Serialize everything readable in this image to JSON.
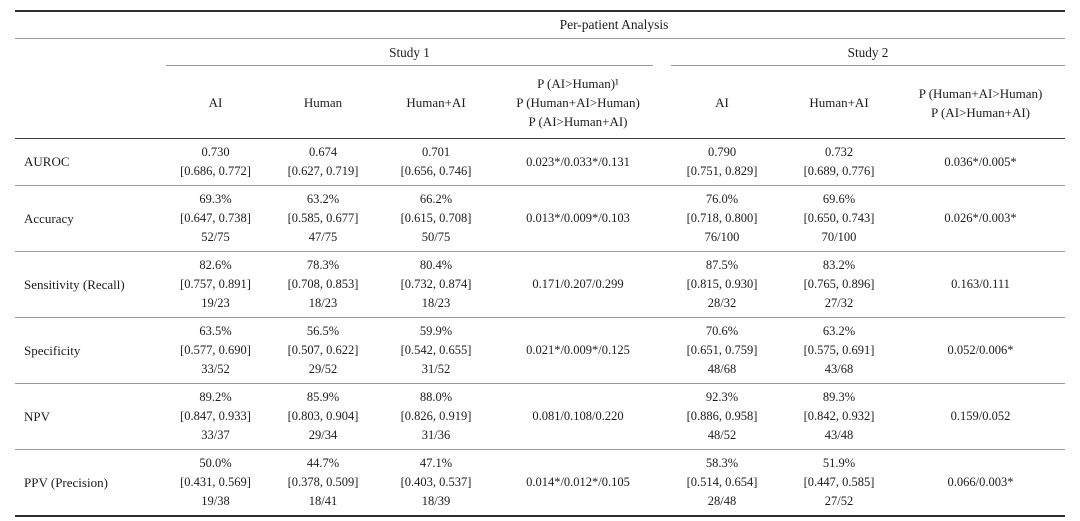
{
  "page": {
    "background": "#ffffff",
    "text_color": "#1c1c1c",
    "rule_dark": "#2e2e2e",
    "rule_light": "#9b9b9b"
  },
  "table": {
    "title": "Per-patient Analysis",
    "groups": [
      {
        "label": "Study 1"
      },
      {
        "label": "Study 2"
      }
    ],
    "columns": {
      "study1": [
        {
          "lines": [
            "AI"
          ]
        },
        {
          "lines": [
            "Human"
          ]
        },
        {
          "lines": [
            "Human+AI"
          ]
        },
        {
          "lines": [
            "P (AI>Human)¹",
            "P (Human+AI>Human)",
            "P (AI>Human+AI)"
          ]
        }
      ],
      "study2": [
        {
          "lines": [
            "AI"
          ]
        },
        {
          "lines": [
            "Human+AI"
          ]
        },
        {
          "lines": [
            "P (Human+AI>Human)",
            "P (AI>Human+AI)"
          ]
        }
      ]
    },
    "rows": [
      {
        "label": "AUROC",
        "cells": [
          [
            "0.730",
            "[0.686, 0.772]"
          ],
          [
            "0.674",
            "[0.627, 0.719]"
          ],
          [
            "0.701",
            "[0.656, 0.746]"
          ],
          [
            "0.023*/0.033*/0.131"
          ],
          [
            "0.790",
            "[0.751, 0.829]"
          ],
          [
            "0.732",
            "[0.689, 0.776]"
          ],
          [
            "0.036*/0.005*"
          ]
        ]
      },
      {
        "label": "Accuracy",
        "cells": [
          [
            "69.3%",
            "[0.647, 0.738]",
            "52/75"
          ],
          [
            "63.2%",
            "[0.585, 0.677]",
            "47/75"
          ],
          [
            "66.2%",
            "[0.615, 0.708]",
            "50/75"
          ],
          [
            "0.013*/0.009*/0.103"
          ],
          [
            "76.0%",
            "[0.718, 0.800]",
            "76/100"
          ],
          [
            "69.6%",
            "[0.650, 0.743]",
            "70/100"
          ],
          [
            "0.026*/0.003*"
          ]
        ]
      },
      {
        "label": "Sensitivity (Recall)",
        "cells": [
          [
            "82.6%",
            "[0.757, 0.891]",
            "19/23"
          ],
          [
            "78.3%",
            "[0.708, 0.853]",
            "18/23"
          ],
          [
            "80.4%",
            "[0.732, 0.874]",
            "18/23"
          ],
          [
            "0.171/0.207/0.299"
          ],
          [
            "87.5%",
            "[0.815, 0.930]",
            "28/32"
          ],
          [
            "83.2%",
            "[0.765, 0.896]",
            "27/32"
          ],
          [
            "0.163/0.111"
          ]
        ]
      },
      {
        "label": "Specificity",
        "cells": [
          [
            "63.5%",
            "[0.577, 0.690]",
            "33/52"
          ],
          [
            "56.5%",
            "[0.507, 0.622]",
            "29/52"
          ],
          [
            "59.9%",
            "[0.542, 0.655]",
            "31/52"
          ],
          [
            "0.021*/0.009*/0.125"
          ],
          [
            "70.6%",
            "[0.651, 0.759]",
            "48/68"
          ],
          [
            "63.2%",
            "[0.575, 0.691]",
            "43/68"
          ],
          [
            "0.052/0.006*"
          ]
        ]
      },
      {
        "label": "NPV",
        "cells": [
          [
            "89.2%",
            "[0.847, 0.933]",
            "33/37"
          ],
          [
            "85.9%",
            "[0.803, 0.904]",
            "29/34"
          ],
          [
            "88.0%",
            "[0.826, 0.919]",
            "31/36"
          ],
          [
            "0.081/0.108/0.220"
          ],
          [
            "92.3%",
            "[0.886, 0.958]",
            "48/52"
          ],
          [
            "89.3%",
            "[0.842, 0.932]",
            "43/48"
          ],
          [
            "0.159/0.052"
          ]
        ]
      },
      {
        "label": "PPV (Precision)",
        "cells": [
          [
            "50.0%",
            "[0.431, 0.569]",
            "19/38"
          ],
          [
            "44.7%",
            "[0.378, 0.509]",
            "18/41"
          ],
          [
            "47.1%",
            "[0.403, 0.537]",
            "18/39"
          ],
          [
            "0.014*/0.012*/0.105"
          ],
          [
            "58.3%",
            "[0.514, 0.654]",
            "28/48"
          ],
          [
            "51.9%",
            "[0.447, 0.585]",
            "27/52"
          ],
          [
            "0.066/0.003*"
          ]
        ]
      }
    ]
  }
}
